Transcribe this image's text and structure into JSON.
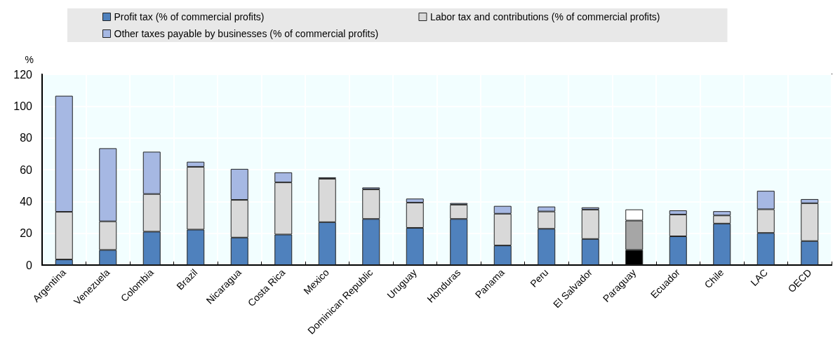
{
  "chart_data": {
    "type": "bar",
    "stacked": true,
    "ylabel": "%",
    "categories": [
      "Argentina",
      "Venezuela",
      "Colombia",
      "Brazil",
      "Nicaragua",
      "Costa Rica",
      "Mexico",
      "Dominican Republic",
      "Uruguay",
      "Honduras",
      "Panama",
      "Peru",
      "El Salvador",
      "Paraguay",
      "Ecuador",
      "Chile",
      "LAC",
      "OECD"
    ],
    "series": [
      {
        "name": "Profit tax (% of commercial profits)",
        "color": "#4f81bd",
        "colors": [
          "#4f81bd",
          "#4f81bd",
          "#4f81bd",
          "#4f81bd",
          "#4f81bd",
          "#4f81bd",
          "#4f81bd",
          "#4f81bd",
          "#4f81bd",
          "#4f81bd",
          "#4f81bd",
          "#4f81bd",
          "#4f81bd",
          "#000000",
          "#4f81bd",
          "#4f81bd",
          "#4f81bd",
          "#4f81bd"
        ],
        "values": [
          3.5,
          9.5,
          21,
          22.3,
          17.3,
          19.2,
          27,
          29,
          23.4,
          29,
          12.3,
          22.8,
          16.4,
          9.5,
          18.1,
          26.1,
          20.2,
          15.1
        ]
      },
      {
        "name": "Labor tax and contributions (% of commercial profits)",
        "color": "#d9d9d9",
        "colors": [
          "#d9d9d9",
          "#d9d9d9",
          "#d9d9d9",
          "#d9d9d9",
          "#d9d9d9",
          "#d9d9d9",
          "#d9d9d9",
          "#d9d9d9",
          "#d9d9d9",
          "#d9d9d9",
          "#d9d9d9",
          "#d9d9d9",
          "#d9d9d9",
          "#a6a6a6",
          "#d9d9d9",
          "#d9d9d9",
          "#d9d9d9",
          "#d9d9d9"
        ],
        "values": [
          30,
          18,
          23.7,
          39.5,
          23.7,
          32.8,
          27.3,
          18.6,
          15.9,
          9,
          20,
          10.9,
          18.5,
          18.5,
          13.7,
          5.1,
          14.9,
          23.8
        ]
      },
      {
        "name": "Other taxes payable by businesses (% of commercial profits)",
        "color": "#a6b8e3",
        "colors": [
          "#a6b8e3",
          "#a6b8e3",
          "#a6b8e3",
          "#a6b8e3",
          "#a6b8e3",
          "#a6b8e3",
          "#a6b8e3",
          "#a6b8e3",
          "#a6b8e3",
          "#a6b8e3",
          "#a6b8e3",
          "#a6b8e3",
          "#a6b8e3",
          "#ffffff",
          "#a6b8e3",
          "#a6b8e3",
          "#a6b8e3",
          "#a6b8e3"
        ],
        "values": [
          73,
          46,
          26.6,
          3.2,
          19.5,
          6.3,
          0.9,
          1.2,
          2.5,
          1,
          4.9,
          3.1,
          1.4,
          7,
          2.6,
          2.7,
          11.6,
          2.6
        ]
      }
    ],
    "ylim": [
      0,
      120
    ],
    "yticks": [
      0,
      20,
      40,
      60,
      80,
      100,
      120
    ],
    "grid": true,
    "legend": "top"
  }
}
